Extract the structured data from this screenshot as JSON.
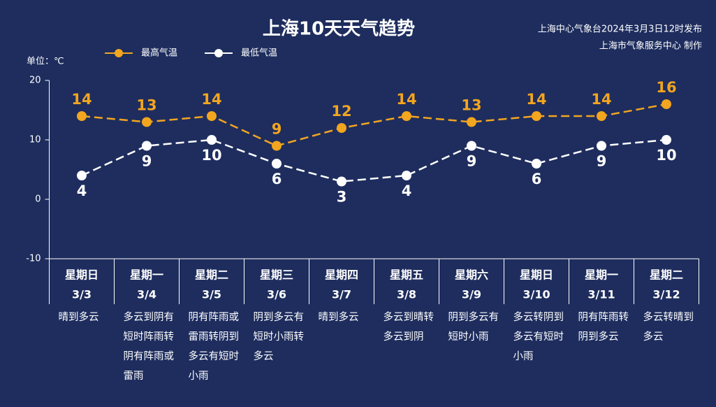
{
  "chart_data": {
    "type": "line",
    "title": "上海10天天气趋势",
    "source": [
      "上海中心气象台2024年3月3日12时发布",
      "上海市气象服务中心 制作"
    ],
    "unit_label": "单位：℃",
    "categories": [
      "星期日",
      "星期一",
      "星期二",
      "星期三",
      "星期四",
      "星期五",
      "星期六",
      "星期日",
      "星期一",
      "星期二"
    ],
    "dates": [
      "3/3",
      "3/4",
      "3/5",
      "3/6",
      "3/7",
      "3/8",
      "3/9",
      "3/10",
      "3/11",
      "3/12"
    ],
    "descriptions": [
      "晴到多云",
      "多云到阴有短时阵雨转阴有阵雨或雷雨",
      "阴有阵雨或雷雨转阴到多云有短时小雨",
      "阴到多云有短时小雨转多云",
      "晴到多云",
      "多云到晴转多云到阴",
      "阴到多云有短时小雨",
      "多云转阴到多云有短时小雨",
      "阴有阵雨转阴到多云",
      "多云转晴到多云"
    ],
    "series": [
      {
        "name": "最高气温",
        "color": "#f2a51f",
        "values": [
          14,
          13,
          14,
          9,
          12,
          14,
          13,
          14,
          14,
          16
        ]
      },
      {
        "name": "最低气温",
        "color": "#ffffff",
        "values": [
          4,
          9,
          10,
          6,
          3,
          4,
          9,
          6,
          9,
          10
        ]
      }
    ],
    "ylim": [
      -10,
      20
    ],
    "yticks": [
      -10,
      0,
      10,
      20
    ],
    "grid": false
  }
}
